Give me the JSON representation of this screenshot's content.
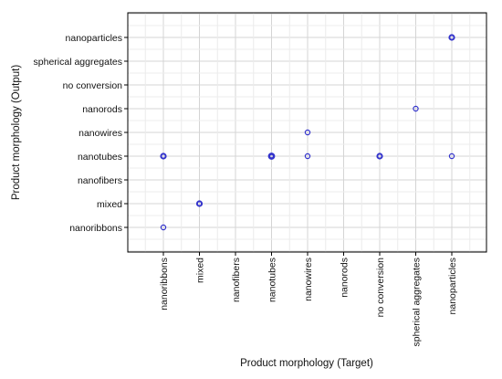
{
  "chart_data": {
    "type": "scatter",
    "title": "",
    "xlabel": "Product morphology (Target)",
    "ylabel": "Product morphology (Output)",
    "x_categories": [
      "nanoribbons",
      "mixed",
      "nanofibers",
      "nanotubes",
      "nanowires",
      "nanorods",
      "no conversion",
      "spherical aggregates",
      "nanoparticles"
    ],
    "y_categories": [
      "nanoribbons",
      "mixed",
      "nanofibers",
      "nanotubes",
      "nanowires",
      "nanorods",
      "no conversion",
      "spherical aggregates",
      "nanoparticles"
    ],
    "grid": true,
    "legend": "none",
    "marker_color": "#3333cc",
    "points": [
      {
        "x": "nanoribbons",
        "y": "nanoribbons",
        "weight": 1
      },
      {
        "x": "nanoribbons",
        "y": "nanotubes",
        "weight": 2
      },
      {
        "x": "mixed",
        "y": "mixed",
        "weight": 2
      },
      {
        "x": "nanotubes",
        "y": "nanotubes",
        "weight": 3
      },
      {
        "x": "nanowires",
        "y": "nanotubes",
        "weight": 1
      },
      {
        "x": "nanowires",
        "y": "nanowires",
        "weight": 1
      },
      {
        "x": "no conversion",
        "y": "nanotubes",
        "weight": 2
      },
      {
        "x": "spherical aggregates",
        "y": "nanorods",
        "weight": 1
      },
      {
        "x": "nanoparticles",
        "y": "nanotubes",
        "weight": 1
      },
      {
        "x": "nanoparticles",
        "y": "nanoparticles",
        "weight": 2
      }
    ]
  }
}
